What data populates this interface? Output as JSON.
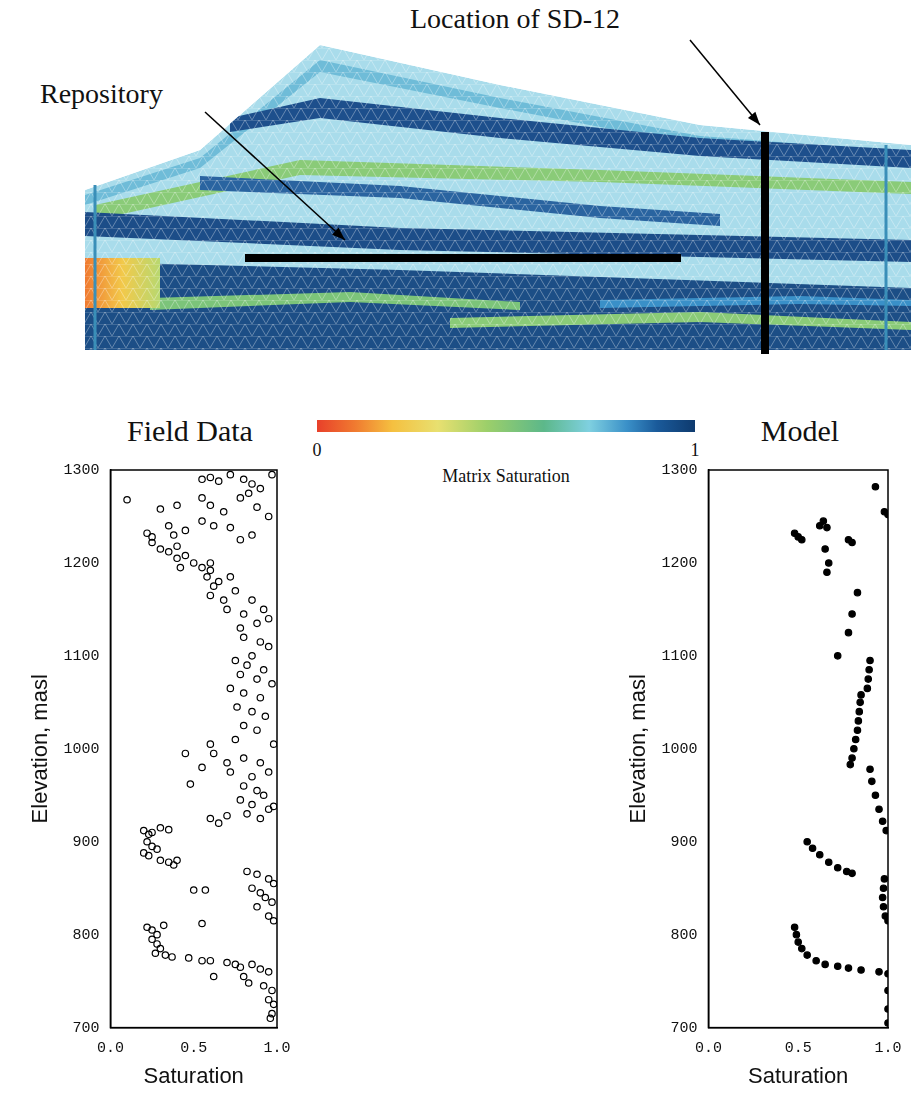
{
  "cross_section": {
    "annotations": [
      "Repository",
      "Location of SD-12"
    ]
  },
  "colorbar": {
    "label": "Matrix Saturation",
    "range": [
      0,
      1
    ],
    "ticks": [
      0,
      1
    ]
  },
  "chart_data": [
    {
      "type": "scatter",
      "title": "Field Data",
      "x_label": "Saturation",
      "y_label": "Elevation, masl",
      "xlim": [
        0,
        1
      ],
      "xticks": [
        {
          "value": 0,
          "label": "0.0"
        },
        {
          "value": 0.5,
          "label": "0.5"
        },
        {
          "value": 1,
          "label": "1.0"
        }
      ],
      "ylim": [
        700,
        1300
      ],
      "yticks": [
        700,
        800,
        900,
        1000,
        1100,
        1200,
        1300
      ],
      "grid": false,
      "marker": "open_circle",
      "color": "#000000",
      "x": [
        0.55,
        0.6,
        0.65,
        0.72,
        0.8,
        0.85,
        0.9,
        0.97,
        0.1,
        0.3,
        0.4,
        0.55,
        0.6,
        0.68,
        0.78,
        0.83,
        0.88,
        0.95,
        0.22,
        0.25,
        0.35,
        0.38,
        0.45,
        0.55,
        0.62,
        0.72,
        0.78,
        0.85,
        0.3,
        0.35,
        0.4,
        0.45,
        0.5,
        0.55,
        0.6,
        0.25,
        0.4,
        0.42,
        0.6,
        0.58,
        0.62,
        0.65,
        0.72,
        0.6,
        0.68,
        0.75,
        0.7,
        0.8,
        0.85,
        0.92,
        0.78,
        0.88,
        0.95,
        0.8,
        0.9,
        0.95,
        0.85,
        0.75,
        0.82,
        0.92,
        0.78,
        0.88,
        0.97,
        0.72,
        0.8,
        0.9,
        0.76,
        0.85,
        0.93,
        0.8,
        0.88,
        0.98,
        0.75,
        0.45,
        0.6,
        0.62,
        0.55,
        0.7,
        0.8,
        0.9,
        0.72,
        0.85,
        0.95,
        0.48,
        0.8,
        0.88,
        0.92,
        0.78,
        0.85,
        0.95,
        0.6,
        0.65,
        0.7,
        0.82,
        0.9,
        0.98,
        0.2,
        0.23,
        0.25,
        0.3,
        0.35,
        0.22,
        0.25,
        0.28,
        0.2,
        0.23,
        0.3,
        0.35,
        0.38,
        0.4,
        0.82,
        0.88,
        0.95,
        0.98,
        0.85,
        0.9,
        0.5,
        0.57,
        0.93,
        0.97,
        0.88,
        0.95,
        0.98,
        0.55,
        0.22,
        0.25,
        0.28,
        0.32,
        0.25,
        0.28,
        0.3,
        0.27,
        0.33,
        0.37,
        0.47,
        0.55,
        0.6,
        0.7,
        0.75,
        0.78,
        0.85,
        0.9,
        0.95,
        0.8,
        0.83,
        0.62,
        0.92,
        0.97,
        0.95,
        0.98,
        0.97,
        0.96
      ],
      "values": [
        1290,
        1292,
        1288,
        1295,
        1290,
        1285,
        1280,
        1295,
        1268,
        1258,
        1262,
        1270,
        1262,
        1255,
        1270,
        1275,
        1260,
        1250,
        1232,
        1228,
        1240,
        1230,
        1235,
        1245,
        1240,
        1238,
        1225,
        1230,
        1215,
        1212,
        1218,
        1208,
        1200,
        1195,
        1192,
        1222,
        1205,
        1195,
        1200,
        1185,
        1175,
        1180,
        1185,
        1165,
        1160,
        1170,
        1150,
        1145,
        1160,
        1150,
        1130,
        1135,
        1140,
        1120,
        1115,
        1110,
        1100,
        1095,
        1090,
        1085,
        1080,
        1075,
        1070,
        1065,
        1060,
        1055,
        1045,
        1040,
        1035,
        1025,
        1020,
        1005,
        1010,
        995,
        1005,
        995,
        980,
        985,
        990,
        985,
        975,
        970,
        975,
        962,
        960,
        955,
        950,
        945,
        940,
        935,
        925,
        920,
        928,
        930,
        925,
        938,
        912,
        908,
        910,
        915,
        913,
        900,
        895,
        892,
        888,
        885,
        880,
        878,
        875,
        880,
        868,
        865,
        860,
        855,
        850,
        845,
        848,
        848,
        840,
        835,
        830,
        820,
        815,
        812,
        808,
        805,
        800,
        810,
        795,
        790,
        785,
        780,
        778,
        776,
        775,
        772,
        772,
        770,
        768,
        765,
        768,
        763,
        760,
        755,
        748,
        755,
        745,
        740,
        730,
        725,
        715,
        710
      ]
    },
    {
      "type": "scatter",
      "title": "Model",
      "x_label": "Saturation",
      "y_label": "Elevation, masl",
      "xlim": [
        0,
        1
      ],
      "xticks": [
        {
          "value": 0,
          "label": "0.0"
        },
        {
          "value": 0.5,
          "label": "0.5"
        },
        {
          "value": 1,
          "label": "1.0"
        }
      ],
      "ylim": [
        700,
        1300
      ],
      "yticks": [
        700,
        800,
        900,
        1000,
        1100,
        1200,
        1300
      ],
      "grid": false,
      "marker": "filled_circle",
      "color": "#000000",
      "x": [
        0.48,
        0.5,
        0.52,
        0.62,
        0.64,
        0.66,
        0.65,
        0.67,
        0.66,
        0.78,
        0.8,
        0.93,
        0.98,
        1.0,
        0.83,
        0.8,
        0.78,
        0.72,
        0.85,
        0.845,
        0.84,
        0.835,
        0.83,
        0.82,
        0.81,
        0.8,
        0.79,
        0.9,
        0.895,
        0.89,
        0.885,
        0.9,
        0.91,
        0.93,
        0.95,
        0.97,
        0.99,
        0.55,
        0.58,
        0.62,
        0.67,
        0.72,
        0.77,
        0.8,
        0.98,
        0.975,
        0.97,
        0.975,
        0.985,
        1.0,
        0.48,
        0.49,
        0.5,
        0.52,
        0.55,
        0.6,
        0.65,
        0.72,
        0.78,
        0.85,
        0.95,
        1.0,
        1.0,
        1.0,
        1.0
      ],
      "values": [
        1232,
        1228,
        1225,
        1240,
        1245,
        1238,
        1215,
        1200,
        1190,
        1225,
        1222,
        1282,
        1255,
        1252,
        1168,
        1145,
        1125,
        1100,
        1058,
        1050,
        1040,
        1030,
        1020,
        1010,
        1000,
        990,
        983,
        1095,
        1085,
        1075,
        1065,
        978,
        965,
        950,
        935,
        922,
        912,
        900,
        893,
        886,
        878,
        872,
        868,
        866,
        860,
        850,
        840,
        830,
        820,
        815,
        808,
        800,
        792,
        785,
        778,
        772,
        768,
        766,
        764,
        762,
        760,
        758,
        740,
        720,
        705
      ]
    }
  ]
}
